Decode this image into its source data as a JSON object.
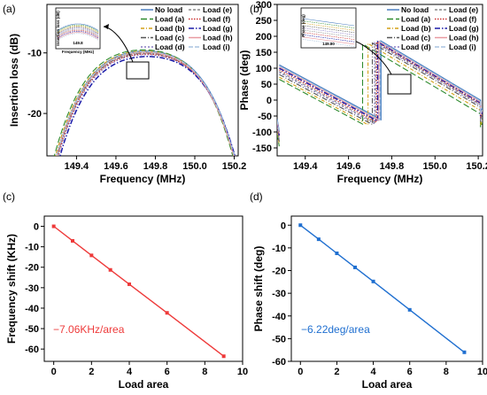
{
  "panel_labels": [
    "(a)",
    "(b)",
    "(c)",
    "(d)"
  ],
  "colors": {
    "No load": "#4a7fc1",
    "Load (a)": "#2e8b2e",
    "Load (b)": "#d4a017",
    "Load (c)": "#555555",
    "Load (d)": "#8a7cc4",
    "Load (e)": "#888888",
    "Load (f)": "#cc3333",
    "Load (g)": "#1a1aa8",
    "Load (h)": "#e899a0",
    "Load (i)": "#a8c4e0",
    "fit_c": "#ee3a3a",
    "fit_d": "#1f6fd0"
  },
  "chart_data": [
    {
      "type": "line",
      "panel": "(a)",
      "xlabel": "Frequency (MHz)",
      "ylabel": "Insertion loss (dB)",
      "xlim": [
        149.25,
        150.22
      ],
      "ylim": [
        -27,
        -2
      ],
      "xticks": [
        "149.4",
        "149.6",
        "149.8",
        "150.0",
        "150.2"
      ],
      "yticks": [
        "-20",
        "-10"
      ],
      "legend_position": "top-right",
      "series": [
        {
          "name": "No load",
          "peak": -9.7,
          "center": 149.75
        },
        {
          "name": "Load (a)",
          "peak": -9.5,
          "center": 149.74
        },
        {
          "name": "Load (b)",
          "peak": -9.7,
          "center": 149.745
        },
        {
          "name": "Load (c)",
          "peak": -10.0,
          "center": 149.75
        },
        {
          "name": "Load (d)",
          "peak": -10.3,
          "center": 149.755
        },
        {
          "name": "Load (e)",
          "peak": -10.1,
          "center": 149.75
        },
        {
          "name": "Load (f)",
          "peak": -10.2,
          "center": 149.752
        },
        {
          "name": "Load (g)",
          "peak": -10.6,
          "center": 149.76
        },
        {
          "name": "Load (h)",
          "peak": -9.9,
          "center": 149.748
        },
        {
          "name": "Load (i)",
          "peak": -9.8,
          "center": 149.75
        }
      ],
      "inset": {
        "xtick": "149.8",
        "xlabel": "Frequency (MHz)",
        "ylabel": "Insertion loss (dB)"
      }
    },
    {
      "type": "line",
      "panel": "(b)",
      "xlabel": "Frequency (MHz)",
      "ylabel": "Phase (deg)",
      "xlim": [
        149.27,
        150.22
      ],
      "ylim": [
        -175,
        300
      ],
      "xticks": [
        "149.4",
        "149.6",
        "149.8",
        "150.0",
        "150.2"
      ],
      "yticks": [
        "-150",
        "-100",
        "-50",
        "0",
        "50",
        "100",
        "150",
        "200",
        "250",
        "300"
      ],
      "legend_position": "top-right",
      "series": [
        {
          "name": "No load",
          "wrap": 149.75,
          "offset": 0
        },
        {
          "name": "Load (a)",
          "wrap": 149.665,
          "offset": -45
        },
        {
          "name": "Load (b)",
          "wrap": 149.69,
          "offset": -38
        },
        {
          "name": "Load (c)",
          "wrap": 149.71,
          "offset": -30
        },
        {
          "name": "Load (d)",
          "wrap": 149.72,
          "offset": -24
        },
        {
          "name": "Load (e)",
          "wrap": 149.725,
          "offset": -20
        },
        {
          "name": "Load (f)",
          "wrap": 149.73,
          "offset": -15
        },
        {
          "name": "Load (g)",
          "wrap": 149.735,
          "offset": -10
        },
        {
          "name": "Load (h)",
          "wrap": 149.74,
          "offset": -6
        },
        {
          "name": "Load (i)",
          "wrap": 149.745,
          "offset": -3
        }
      ],
      "inset": {
        "xtick": "149.80",
        "ylabel": "Phase (deg)"
      }
    },
    {
      "type": "scatter",
      "panel": "(c)",
      "xlabel": "Load area",
      "ylabel": "Frequency shift (KHz)",
      "xlim": [
        -0.5,
        10
      ],
      "ylim": [
        -66,
        5
      ],
      "xticks": [
        "0",
        "2",
        "4",
        "6",
        "8",
        "10"
      ],
      "yticks": [
        "0",
        "-10",
        "-20",
        "-30",
        "-40",
        "-50",
        "-60"
      ],
      "x": [
        0,
        1,
        2,
        3,
        4,
        6,
        9
      ],
      "y": [
        0,
        -7.1,
        -14.2,
        -21.3,
        -28.3,
        -42.3,
        -63.5
      ],
      "annotation": "−7.06KHz/area"
    },
    {
      "type": "scatter",
      "panel": "(d)",
      "xlabel": "Load area",
      "ylabel": "Phase shift (deg)",
      "xlim": [
        -0.5,
        10
      ],
      "ylim": [
        -60,
        4
      ],
      "xticks": [
        "0",
        "2",
        "4",
        "6",
        "8",
        "10"
      ],
      "yticks": [
        "0",
        "-10",
        "-20",
        "-30",
        "-40",
        "-50",
        "-60"
      ],
      "x": [
        0,
        1,
        2,
        3,
        4,
        6,
        9
      ],
      "y": [
        0,
        -6.2,
        -12.4,
        -18.6,
        -24.8,
        -37.3,
        -56.0
      ],
      "annotation": "−6.22deg/area"
    }
  ]
}
